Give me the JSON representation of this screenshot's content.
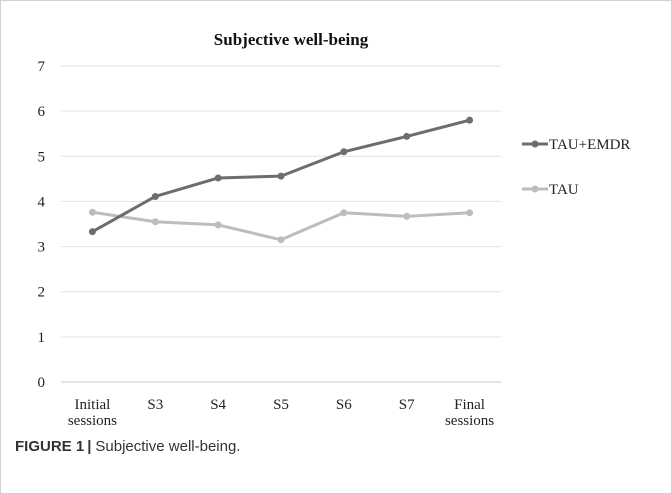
{
  "chart_data": {
    "type": "line",
    "title": "Subjective well-being",
    "categories": [
      [
        "Initial",
        "sessions"
      ],
      [
        "S3"
      ],
      [
        "S4"
      ],
      [
        "S5"
      ],
      [
        "S6"
      ],
      [
        "S7"
      ],
      [
        "Final",
        "sessions"
      ]
    ],
    "ylim": [
      0,
      7
    ],
    "yticks": [
      "0",
      "1",
      "2",
      "3",
      "4",
      "5",
      "6",
      "7"
    ],
    "grid": true,
    "legend_position": "right",
    "series": [
      {
        "name": "TAU+EMDR",
        "color": "#6d6d6d",
        "values": [
          3.33,
          4.11,
          4.52,
          4.56,
          5.1,
          5.44,
          5.8
        ]
      },
      {
        "name": "TAU",
        "color": "#bdbdbd",
        "values": [
          3.76,
          3.55,
          3.48,
          3.15,
          3.75,
          3.67,
          3.75
        ]
      }
    ]
  },
  "caption": {
    "label": "FIGURE 1",
    "separator": "|",
    "text": "Subjective well-being."
  }
}
